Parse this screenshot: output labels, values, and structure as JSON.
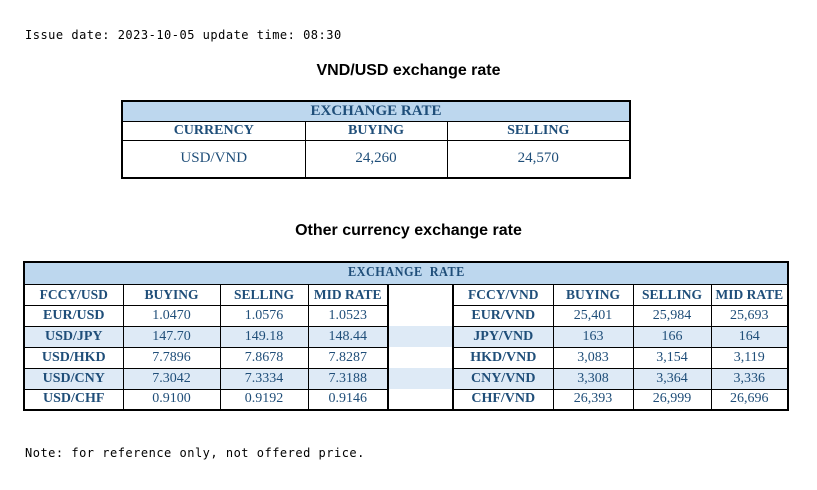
{
  "page": {
    "issue_line": "Issue date: 2023-10-05 update time: 08:30",
    "note_line": "Note: for reference only, not offered price."
  },
  "usd_table": {
    "title": "VND/USD exchange rate",
    "header": "EXCHANGE RATE",
    "columns": [
      "CURRENCY",
      "BUYING",
      "SELLING"
    ],
    "rows": [
      [
        "USD/VND",
        "24,260",
        "24,570"
      ]
    ]
  },
  "other_table": {
    "title": "Other currency exchange rate",
    "header": "EXCHANGE  RATE",
    "left": {
      "columns": [
        "FCCY/USD",
        "BUYING",
        "SELLING",
        "MID RATE"
      ],
      "rows": [
        [
          "EUR/USD",
          "1.0470",
          "1.0576",
          "1.0523"
        ],
        [
          "USD/JPY",
          "147.70",
          "149.18",
          "148.44"
        ],
        [
          "USD/HKD",
          "7.7896",
          "7.8678",
          "7.8287"
        ],
        [
          "USD/CNY",
          "7.3042",
          "7.3334",
          "7.3188"
        ],
        [
          "USD/CHF",
          "0.9100",
          "0.9192",
          "0.9146"
        ]
      ]
    },
    "right": {
      "columns": [
        "FCCY/VND",
        "BUYING",
        "SELLING",
        "MID RATE"
      ],
      "rows": [
        [
          "EUR/VND",
          "25,401",
          "25,984",
          "25,693"
        ],
        [
          "JPY/VND",
          "163",
          "166",
          "164"
        ],
        [
          "HKD/VND",
          "3,083",
          "3,154",
          "3,119"
        ],
        [
          "CNY/VND",
          "3,308",
          "3,364",
          "3,336"
        ],
        [
          "CHF/VND",
          "26,393",
          "26,999",
          "26,696"
        ]
      ]
    }
  },
  "colors": {
    "header_bg": "#BDD7EE",
    "stripe_bg": "#DEEAF6",
    "text_blue": "#1F4E79",
    "border": "#000000",
    "title_text": "#000000"
  }
}
